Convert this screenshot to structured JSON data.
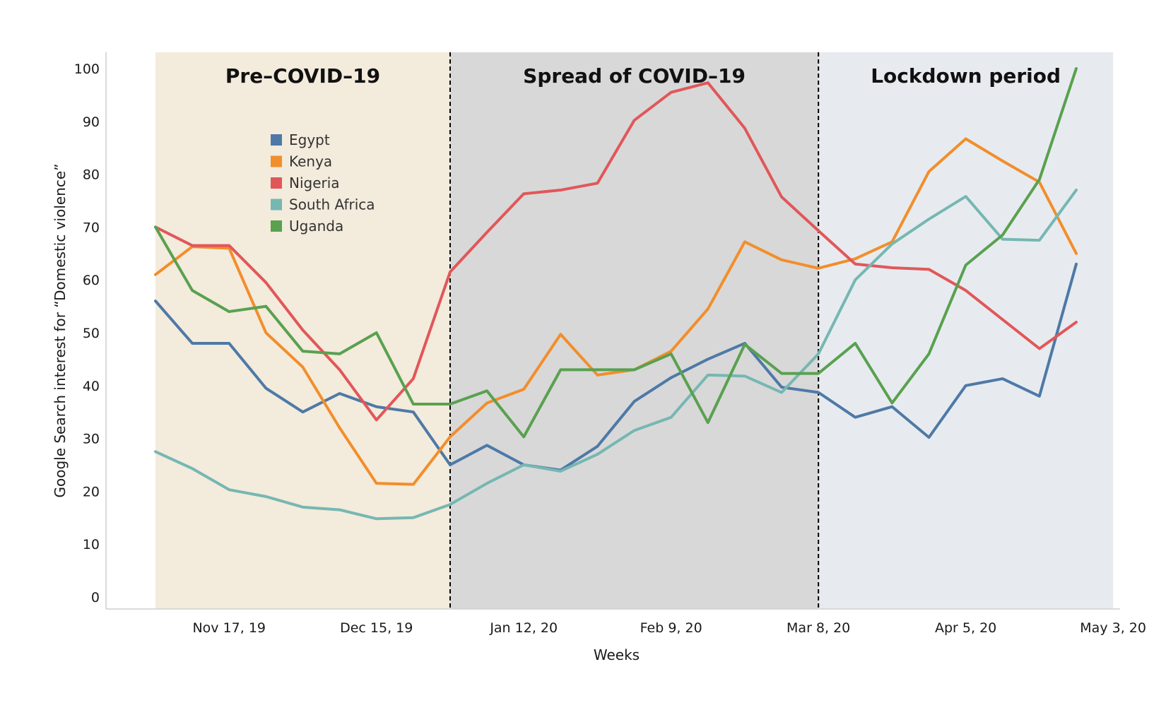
{
  "chart_data": {
    "type": "line",
    "title": "",
    "xlabel": "Weeks",
    "ylabel": "Google Search interest for “Domestic violence”",
    "ylim": [
      0,
      105
    ],
    "yticks": [
      0,
      10,
      20,
      30,
      40,
      50,
      60,
      70,
      80,
      90,
      100
    ],
    "x": [
      "Nov 3, 19",
      "Nov 10, 19",
      "Nov 17, 19",
      "Nov 24, 19",
      "Dec 1, 19",
      "Dec 8, 19",
      "Dec 15, 19",
      "Dec 22, 19",
      "Dec 29, 19",
      "Jan 5, 20",
      "Jan 12, 20",
      "Jan 19, 20",
      "Jan 26, 20",
      "Feb 2, 20",
      "Feb 9, 20",
      "Feb 16, 20",
      "Feb 23, 20",
      "Mar 1, 20",
      "Mar 8, 20",
      "Mar 15, 20",
      "Mar 22, 20",
      "Mar 29, 20",
      "Apr 5, 20",
      "Apr 12, 20",
      "Apr 19, 20",
      "Apr 26, 20"
    ],
    "last_x": "May 3, 20",
    "xtick_labels": [
      "Nov 17, 19",
      "Dec 15, 19",
      "Jan 12, 20",
      "Feb 9, 20",
      "Mar 8, 20",
      "Apr 5, 20",
      "May 3, 20"
    ],
    "grid": false,
    "legend_position": "top-left",
    "periods": [
      {
        "label": "Pre–COVID–19",
        "start": "Nov 3, 19",
        "end": "Dec 29, 19",
        "color": "#f3ebdc"
      },
      {
        "label": "Spread of COVID–19",
        "start": "Dec 29, 19",
        "end": "Mar 8, 20",
        "color": "#d8d8d8"
      },
      {
        "label": "Lockdown period",
        "start": "Mar 8, 20",
        "end": "May 3, 20",
        "color": "#e7ebef"
      }
    ],
    "series": [
      {
        "name": "Egypt",
        "color": "#4e79a7",
        "values": [
          56,
          48,
          48,
          39.5,
          35,
          38.5,
          36,
          35,
          25,
          28.7,
          25,
          24,
          28.5,
          37,
          41.5,
          45,
          48,
          39.7,
          38.7,
          34,
          36,
          30.2,
          40,
          41.3,
          38,
          63
        ]
      },
      {
        "name": "Kenya",
        "color": "#f28e2b",
        "values": [
          61,
          66.3,
          66,
          50,
          43.5,
          32,
          21.5,
          21.3,
          30.3,
          36.7,
          39.3,
          49.7,
          42,
          43,
          46.5,
          54.5,
          67.2,
          63.8,
          62.2,
          64,
          67.2,
          80.5,
          86.7,
          82.5,
          78.5,
          65
        ]
      },
      {
        "name": "Nigeria",
        "color": "#e15759",
        "values": [
          70,
          66.5,
          66.5,
          59.5,
          50.5,
          43,
          33.5,
          41.3,
          61.5,
          69,
          76.3,
          77,
          78.3,
          90.2,
          95.5,
          97.3,
          88.7,
          75.7,
          69.3,
          63,
          62.3,
          62,
          58,
          52.5,
          47,
          52
        ]
      },
      {
        "name": "South Africa",
        "color": "#76b7b2",
        "values": [
          27.5,
          24.3,
          20.3,
          19,
          17,
          16.5,
          14.8,
          15,
          17.5,
          21.5,
          25,
          23.8,
          27,
          31.5,
          34,
          42,
          41.8,
          38.7,
          46,
          60,
          66.8,
          71.5,
          75.8,
          67.7,
          67.5,
          77
        ]
      },
      {
        "name": "Uganda",
        "color": "#59a14f",
        "values": [
          70,
          58,
          54,
          55,
          46.5,
          46,
          50,
          36.5,
          36.5,
          39,
          30.3,
          43,
          43,
          43,
          46,
          33,
          47.8,
          42.3,
          42.3,
          48,
          36.7,
          46,
          62.8,
          68.5,
          79,
          100
        ]
      }
    ]
  }
}
